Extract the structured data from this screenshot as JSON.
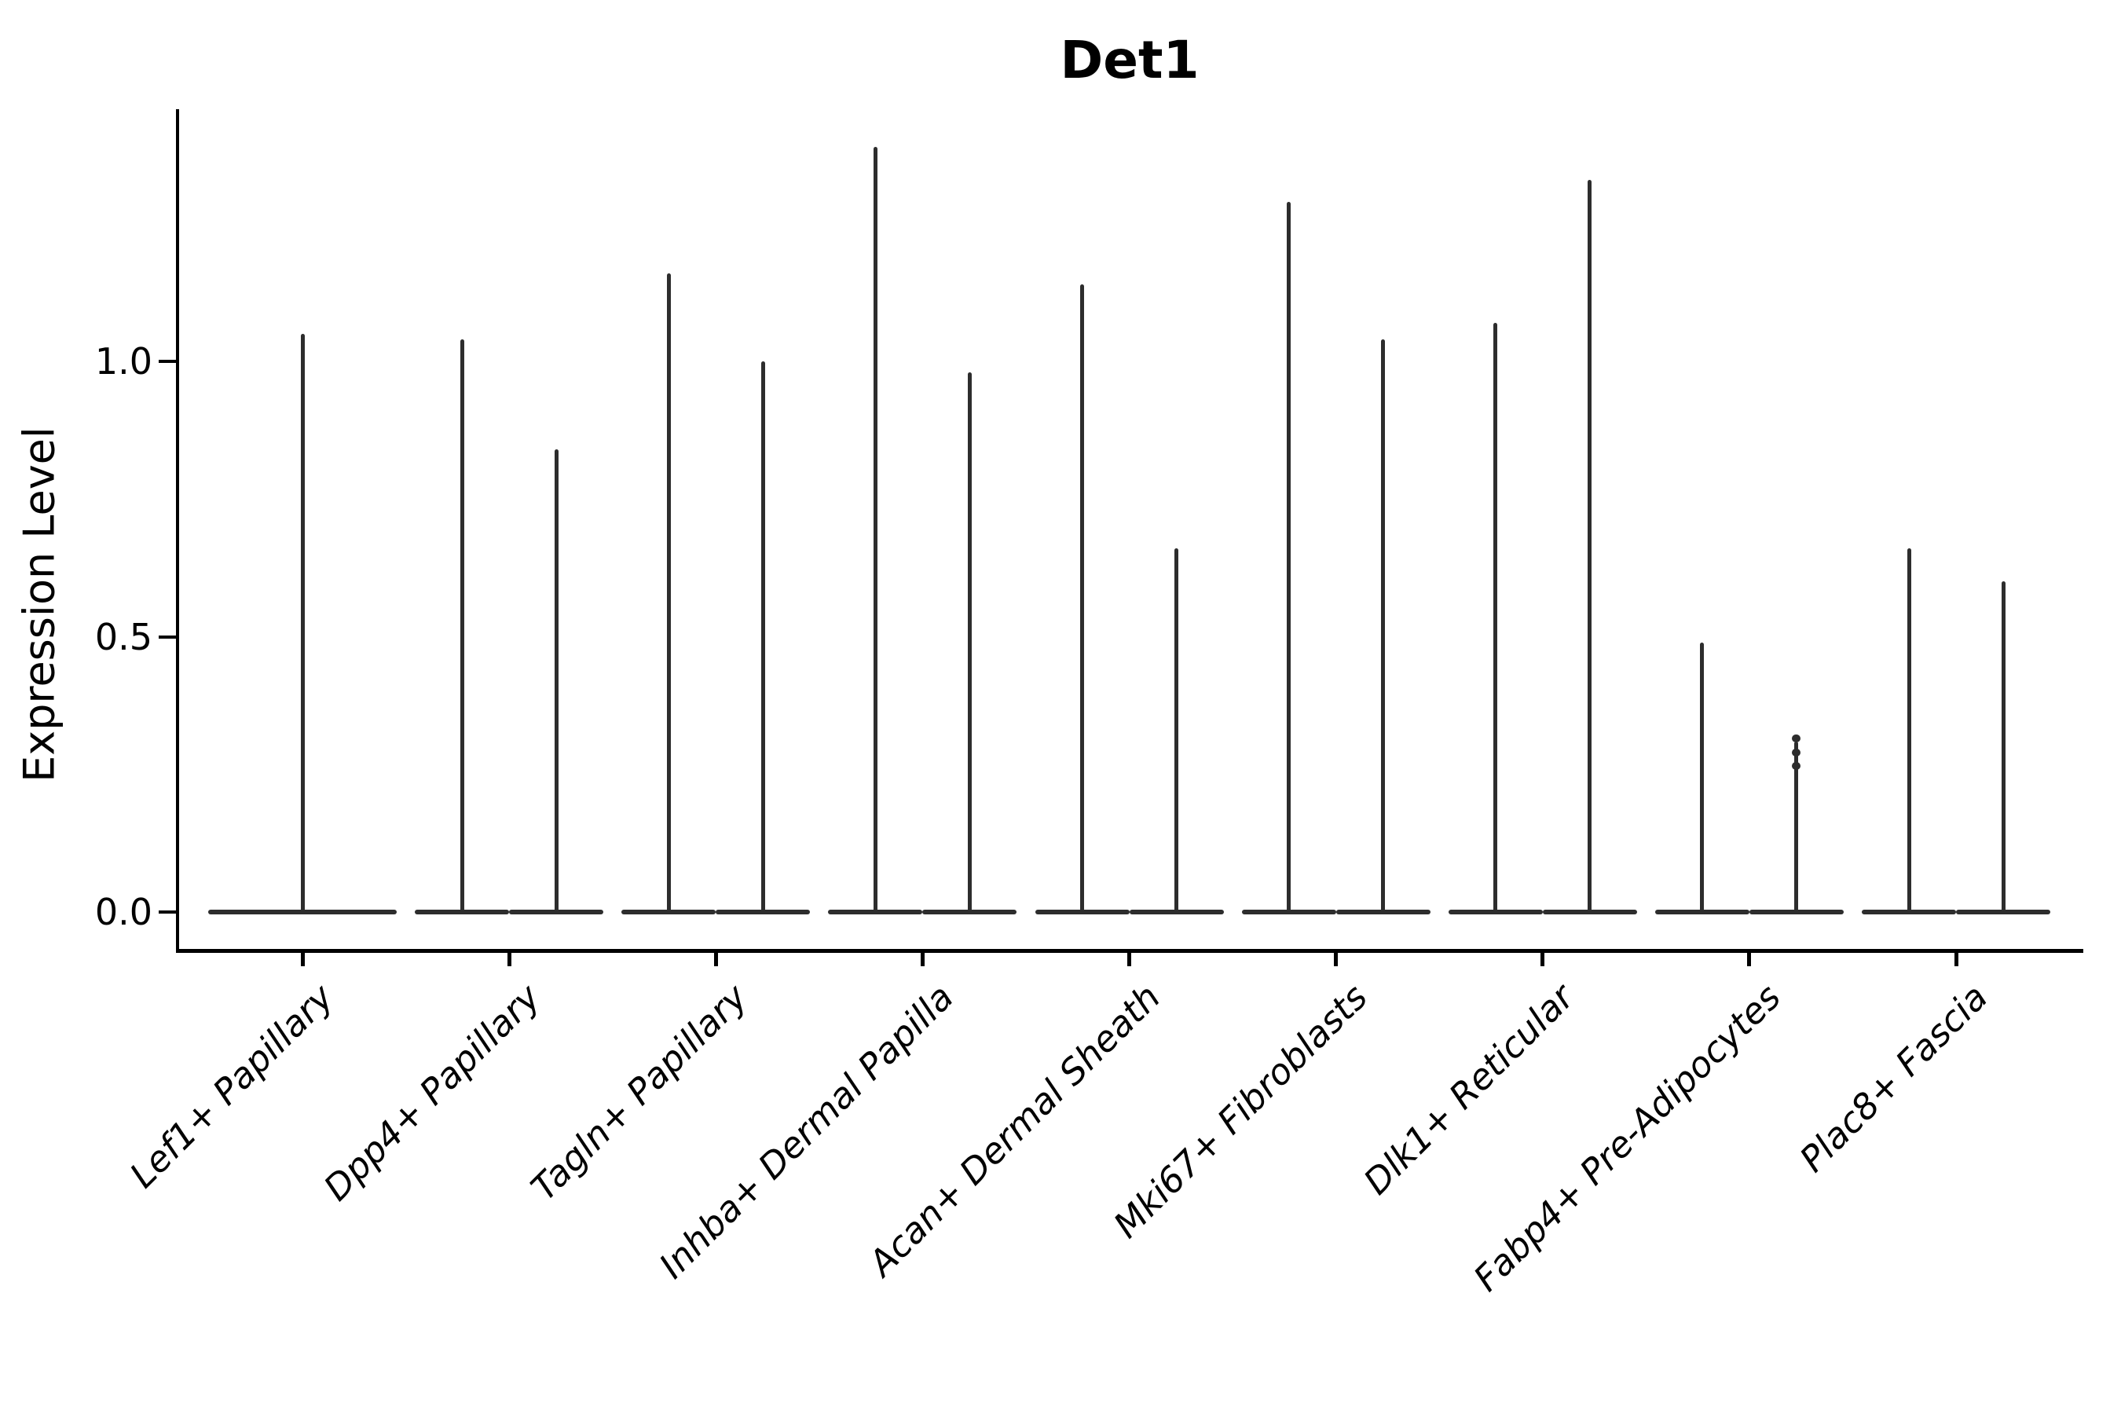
{
  "chart_data": {
    "type": "violin",
    "title": "Det1",
    "ylabel": "Expression Level",
    "xlabel": "",
    "ylim": [
      -0.07,
      1.46
    ],
    "grid": "off",
    "legend": "none",
    "yticks": [
      {
        "label": "0.0",
        "value": 0.0
      },
      {
        "label": "0.5",
        "value": 0.5
      },
      {
        "label": "1.0",
        "value": 1.0
      }
    ],
    "colors": {
      "violin": "#2d2d2d",
      "axis": "#000000",
      "text": "#000000",
      "background": "#ffffff"
    },
    "categories": [
      {
        "label": "Lef1+ Papillary",
        "violins": [
          {
            "max": 1.05
          }
        ]
      },
      {
        "label": "Dpp4+ Papillary",
        "violins": [
          {
            "max": 1.04
          },
          {
            "max": 0.84
          }
        ]
      },
      {
        "label": "Tagln+ Papillary",
        "violins": [
          {
            "max": 1.16
          },
          {
            "max": 1.0
          }
        ]
      },
      {
        "label": "Inhba+ Dermal Papilla",
        "violins": [
          {
            "max": 1.39
          },
          {
            "max": 0.98
          }
        ]
      },
      {
        "label": "Acan+ Dermal Sheath",
        "violins": [
          {
            "max": 1.14
          },
          {
            "max": 0.66
          }
        ]
      },
      {
        "label": "Mki67+ Fibroblasts",
        "violins": [
          {
            "max": 1.29
          },
          {
            "max": 1.04
          }
        ]
      },
      {
        "label": "Dlk1+ Reticular",
        "violins": [
          {
            "max": 1.07
          },
          {
            "max": 1.33
          }
        ]
      },
      {
        "label": "Fabp4+ Pre-Adipocytes",
        "violins": [
          {
            "max": 0.49
          },
          {
            "max": 0.31,
            "bumps": [
              0.315,
              0.29,
              0.265
            ]
          }
        ]
      },
      {
        "label": "Plac8+ Fascia",
        "violins": [
          {
            "max": 0.66
          },
          {
            "max": 0.6
          }
        ]
      }
    ],
    "description": "Violin plot of Det1 expression; all distributions are massed at 0 with thin density spikes up to the per-group maximum. Categories 2-9 contain two side-by-side violins; category 1 contains a single double-width violin."
  }
}
